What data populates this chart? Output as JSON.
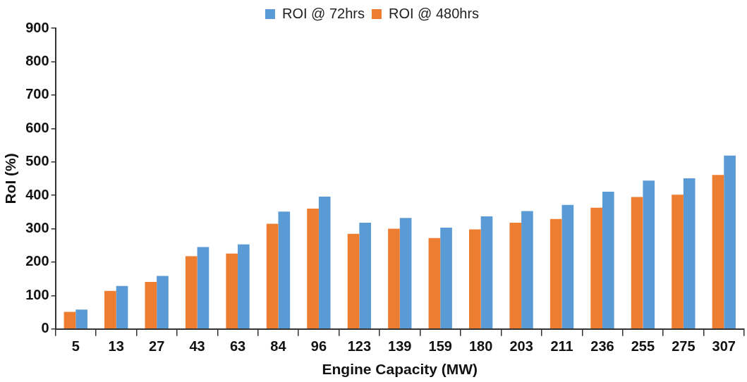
{
  "chart_data": {
    "type": "bar",
    "xlabel": "Engine Capacity (MW)",
    "ylabel": "RoI (%)",
    "categories": [
      "5",
      "13",
      "27",
      "43",
      "63",
      "84",
      "96",
      "123",
      "139",
      "159",
      "180",
      "203",
      "211",
      "236",
      "255",
      "275",
      "307"
    ],
    "series": [
      {
        "name": "ROI @ 72hrs",
        "color": "#5b9bd5",
        "values": [
          58,
          129,
          159,
          245,
          253,
          351,
          396,
          318,
          332,
          303,
          337,
          353,
          371,
          411,
          444,
          451,
          519
        ]
      },
      {
        "name": "ROI @ 480hrs",
        "color": "#ed7d31",
        "values": [
          51,
          114,
          141,
          218,
          226,
          315,
          360,
          285,
          300,
          272,
          298,
          318,
          329,
          363,
          395,
          402,
          461
        ]
      }
    ],
    "ylim": [
      0,
      900
    ],
    "yticks": [
      0,
      100,
      200,
      300,
      400,
      500,
      600,
      700,
      800,
      900
    ],
    "grid": false,
    "legend": "top"
  }
}
